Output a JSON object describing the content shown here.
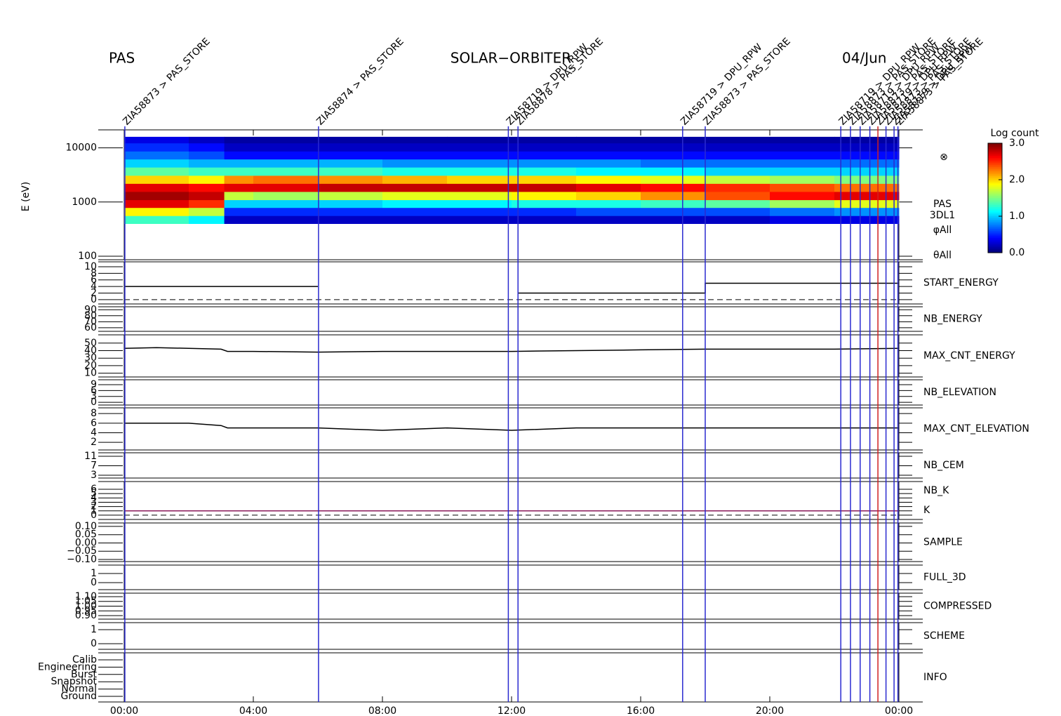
{
  "header": {
    "left": "PAS",
    "center": "SOLAR−ORBITER",
    "right": "04/Jun"
  },
  "x_axis": {
    "xlim": [
      0,
      24
    ],
    "xticks": [
      {
        "value": 0,
        "label": "00:00"
      },
      {
        "value": 4,
        "label": "04:00"
      },
      {
        "value": 8,
        "label": "08:00"
      },
      {
        "value": 12,
        "label": "12:00"
      },
      {
        "value": 16,
        "label": "16:00"
      },
      {
        "value": 20,
        "label": "20:00"
      },
      {
        "value": 24,
        "label": "00:00"
      }
    ]
  },
  "events": [
    {
      "x": 0.02,
      "label": "ZIA58873 > PAS_STORE",
      "color": "#2a2ad0"
    },
    {
      "x": 6.02,
      "label": "ZIA58874 > PAS_STORE",
      "color": "#2a2ad0"
    },
    {
      "x": 11.9,
      "label": "ZIA58719 > DPU_RPW",
      "color": "#2a2ad0"
    },
    {
      "x": 12.2,
      "label": "ZIA58878 > PAS_STORE",
      "color": "#2a2ad0"
    },
    {
      "x": 17.3,
      "label": "ZIA58719 > DPU_RPW",
      "color": "#2a2ad0"
    },
    {
      "x": 18.0,
      "label": "ZIA58873 > PAS_STORE",
      "color": "#2a2ad0"
    },
    {
      "x": 22.2,
      "label": "ZIA58719 > DPU_RPW",
      "color": "#2a2ad0"
    },
    {
      "x": 22.5,
      "label": "ZIA58873 > PAS_STORE",
      "color": "#2a2ad0"
    },
    {
      "x": 22.8,
      "label": "ZIA58719 > DPU_RPW",
      "color": "#2a2ad0"
    },
    {
      "x": 23.1,
      "label": "ZIA58873 > PAS_STORE",
      "color": "#2a2ad0"
    },
    {
      "x": 23.35,
      "label": "ZIA58719 > DPU_RPW",
      "color": "#d02020"
    },
    {
      "x": 23.6,
      "label": "ZIA58873 > PAS_STORE",
      "color": "#2a2ad0"
    },
    {
      "x": 23.85,
      "label": "ZIA58719 > DPU_RPW",
      "color": "#2a2ad0"
    },
    {
      "x": 23.97,
      "label": "ZIA58873 > PAS_STORE",
      "color": "#2a2ad0"
    }
  ],
  "chart_data": [
    {
      "type": "heatmap",
      "y_label": "E (eV)",
      "log_y": true,
      "ylim": [
        86,
        21500
      ],
      "yticks": [
        100,
        1000,
        10000
      ],
      "labels": [
        {
          "text": "PAS",
          "color": "#000000"
        },
        {
          "text": "3DL1",
          "color": "#000000"
        },
        {
          "text": "φAll",
          "color": "#000000"
        },
        {
          "text": "θAll",
          "color": "#000000"
        }
      ],
      "symbol": "⊗",
      "x_bins": [
        0,
        2,
        3.1,
        4,
        6,
        8,
        10,
        12,
        14,
        16,
        18,
        20,
        22,
        24
      ],
      "y_bins": [
        400,
        560,
        790,
        1100,
        1560,
        2200,
        3100,
        4400,
        6200,
        8700,
        12300,
        16000
      ],
      "values": [
        [
          1.3,
          1.9,
          2.7,
          2.9,
          2.7,
          2.0,
          1.4,
          1.0,
          0.7,
          0.5,
          0.3
        ],
        [
          1.1,
          1.7,
          2.5,
          2.8,
          2.6,
          1.9,
          1.3,
          0.9,
          0.6,
          0.4,
          0.2
        ],
        [
          0.2,
          0.5,
          1.0,
          1.7,
          2.7,
          2.2,
          1.3,
          0.9,
          0.4,
          0.2,
          0.1
        ],
        [
          0.2,
          0.5,
          1.0,
          1.6,
          2.7,
          2.3,
          1.3,
          0.9,
          0.4,
          0.2,
          0.1
        ],
        [
          0.2,
          0.5,
          1.0,
          1.7,
          2.8,
          2.2,
          1.3,
          0.9,
          0.4,
          0.2,
          0.1
        ],
        [
          0.2,
          0.5,
          1.1,
          1.8,
          2.8,
          2.1,
          1.2,
          0.8,
          0.4,
          0.2,
          0.1
        ],
        [
          0.2,
          0.5,
          1.1,
          1.8,
          2.8,
          2.0,
          1.2,
          0.8,
          0.4,
          0.2,
          0.1
        ],
        [
          0.2,
          0.5,
          1.2,
          1.9,
          2.8,
          2.0,
          1.2,
          0.8,
          0.4,
          0.2,
          0.1
        ],
        [
          0.2,
          0.6,
          1.2,
          2.0,
          2.7,
          1.9,
          1.1,
          0.8,
          0.4,
          0.2,
          0.1
        ],
        [
          0.2,
          0.6,
          1.3,
          2.2,
          2.6,
          1.8,
          1.1,
          0.7,
          0.4,
          0.2,
          0.1
        ],
        [
          0.2,
          0.6,
          1.4,
          2.4,
          2.5,
          1.7,
          1.0,
          0.7,
          0.4,
          0.2,
          0.1
        ],
        [
          0.3,
          0.7,
          1.6,
          2.6,
          2.4,
          1.6,
          1.0,
          0.7,
          0.4,
          0.2,
          0.1
        ],
        [
          0.3,
          0.8,
          1.8,
          2.7,
          2.3,
          1.5,
          1.0,
          0.7,
          0.4,
          0.2,
          0.1
        ]
      ],
      "colorbar": {
        "title": "Log count",
        "lim": [
          0,
          3
        ],
        "ticks": [
          {
            "value": 0,
            "label": "0.0"
          },
          {
            "value": 1,
            "label": "1.0"
          },
          {
            "value": 2,
            "label": "2.0"
          },
          {
            "value": 3,
            "label": "3.0"
          }
        ]
      }
    },
    {
      "type": "line",
      "labels": [
        {
          "text": "START_ENERGY",
          "color": "#000000"
        }
      ],
      "ylim": [
        -1.3,
        11.5
      ],
      "yticks": [
        0,
        2,
        4,
        6,
        8,
        10
      ],
      "zero_line": true,
      "series": [
        {
          "color": "#000000",
          "x": [
            0,
            6,
            9,
            12.2,
            18,
            18,
            24
          ],
          "values": [
            4,
            4,
            null,
            2,
            2,
            5,
            5
          ]
        }
      ]
    },
    {
      "type": "line",
      "labels": [
        {
          "text": "NB_ENERGY",
          "color": "#2a2ad0"
        }
      ],
      "ylim": [
        54,
        95
      ],
      "yticks": [
        60,
        70,
        80,
        90
      ],
      "series": []
    },
    {
      "type": "line",
      "labels": [
        {
          "text": "MAX_CNT_ENERGY",
          "color": "#000000"
        }
      ],
      "ylim": [
        5,
        61
      ],
      "yticks": [
        10,
        20,
        30,
        40,
        50
      ],
      "series": [
        {
          "color": "#000000",
          "x": [
            0,
            1,
            2,
            3,
            3.2,
            4,
            6,
            8,
            10,
            12,
            14,
            16,
            18,
            20,
            22,
            24
          ],
          "values": [
            43,
            44,
            43,
            42,
            39,
            39,
            38,
            39,
            39,
            39,
            40,
            41,
            42,
            42,
            42,
            43
          ]
        }
      ]
    },
    {
      "type": "line",
      "labels": [
        {
          "text": "NB_ELEVATION",
          "color": "#2a2ad0"
        }
      ],
      "ylim": [
        -1.4,
        11.5
      ],
      "yticks": [
        0,
        3,
        6,
        9
      ],
      "series": []
    },
    {
      "type": "line",
      "labels": [
        {
          "text": "MAX_CNT_ELEVATION",
          "color": "#000000"
        }
      ],
      "ylim": [
        0.4,
        9.2
      ],
      "yticks": [
        2,
        4,
        6,
        8
      ],
      "series": [
        {
          "color": "#000000",
          "x": [
            0,
            1,
            2,
            3,
            3.2,
            4,
            6,
            8,
            10,
            12,
            14,
            16,
            18,
            20,
            22,
            24
          ],
          "values": [
            6,
            6,
            6,
            5.5,
            5,
            5,
            5,
            4.5,
            5,
            4.5,
            5,
            5,
            5,
            5,
            5,
            5
          ]
        }
      ]
    },
    {
      "type": "line",
      "labels": [
        {
          "text": "NB_CEM",
          "color": "#2a2ad0"
        }
      ],
      "ylim": [
        1.8,
        12.5
      ],
      "yticks": [
        3,
        7,
        11
      ],
      "series": []
    },
    {
      "type": "line",
      "labels": [
        {
          "text": "NB_K",
          "color": "#d02020"
        },
        {
          "text": "K",
          "color": "#2a2ad0"
        }
      ],
      "ylim": [
        -1,
        7.8
      ],
      "yticks": [
        0,
        1,
        2,
        3,
        4,
        5,
        6
      ],
      "zero_line": true,
      "series": [
        {
          "color": "#8a1a5a",
          "x": [
            0,
            24
          ],
          "values": [
            1,
            1
          ]
        }
      ]
    },
    {
      "type": "line",
      "labels": [
        {
          "text": "SAMPLE",
          "color": "#2a2ad0"
        }
      ],
      "ylim": [
        -0.113,
        0.121
      ],
      "yticks": [
        {
          "value": -0.1,
          "label": "−0.10"
        },
        {
          "value": -0.05,
          "label": "−0.05"
        },
        {
          "value": 0,
          "label": "0.00"
        },
        {
          "value": 0.05,
          "label": "0.05"
        },
        {
          "value": 0.1,
          "label": "0.10"
        }
      ],
      "series": []
    },
    {
      "type": "line",
      "labels": [
        {
          "text": "FULL_3D",
          "color": "#2a2ad0"
        }
      ],
      "ylim": [
        -0.77,
        1.92
      ],
      "yticks": [
        0,
        1
      ],
      "series": []
    },
    {
      "type": "line",
      "labels": [
        {
          "text": "COMPRESSED",
          "color": "#000000"
        }
      ],
      "ylim": [
        0.863,
        1.137
      ],
      "yticks": [
        {
          "value": 0.9,
          "label": "0.90"
        },
        {
          "value": 0.95,
          "label": "0.95"
        },
        {
          "value": 1,
          "label": "1.00"
        },
        {
          "value": 1.05,
          "label": "1.05"
        },
        {
          "value": 1.1,
          "label": "1.10"
        }
      ],
      "series": []
    },
    {
      "type": "line",
      "labels": [
        {
          "text": "SCHEME",
          "color": "#000000"
        }
      ],
      "ylim": [
        -0.4,
        1.5
      ],
      "yticks": [
        0,
        1
      ],
      "series": []
    },
    {
      "type": "state",
      "labels": [
        {
          "text": "INFO",
          "color": "#000000"
        }
      ],
      "categories": [
        "Calib",
        "Engineering",
        "Burst",
        "Snapshot",
        "Normal",
        "Ground"
      ]
    }
  ]
}
